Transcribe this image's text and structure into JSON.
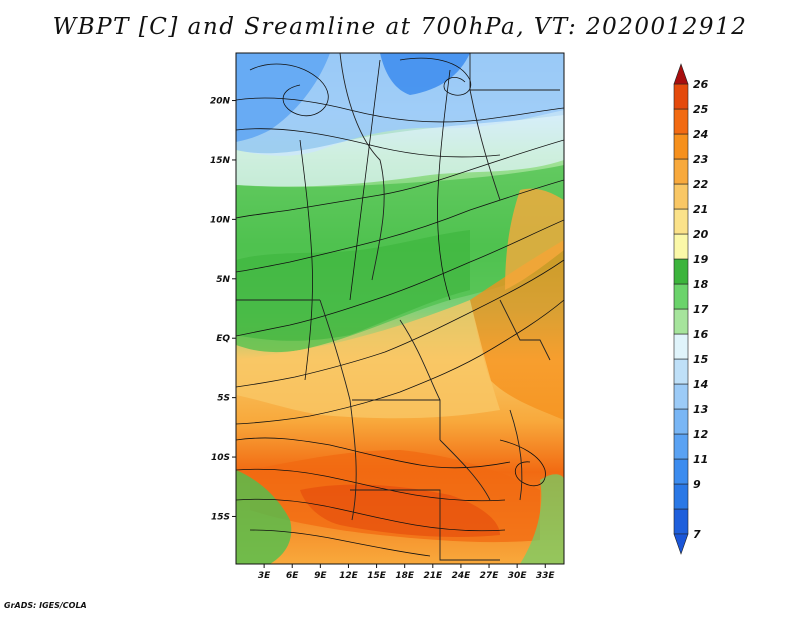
{
  "title": "WBPT [C] and Sreamline at 700hPa, VT: 2020012912",
  "credit": "GrADS: IGES/COLA",
  "map": {
    "lat_range": [
      -19,
      24
    ],
    "lon_range": [
      0,
      35
    ],
    "lat_ticks": [
      {
        "value": 20,
        "label": "20N"
      },
      {
        "value": 15,
        "label": "15N"
      },
      {
        "value": 10,
        "label": "10N"
      },
      {
        "value": 5,
        "label": "5N"
      },
      {
        "value": 0,
        "label": "EQ"
      },
      {
        "value": -5,
        "label": "5S"
      },
      {
        "value": -10,
        "label": "10S"
      },
      {
        "value": -15,
        "label": "15S"
      }
    ],
    "lon_ticks": [
      {
        "value": 3,
        "label": "3E"
      },
      {
        "value": 6,
        "label": "6E"
      },
      {
        "value": 9,
        "label": "9E"
      },
      {
        "value": 12,
        "label": "12E"
      },
      {
        "value": 15,
        "label": "15E"
      },
      {
        "value": 18,
        "label": "18E"
      },
      {
        "value": 21,
        "label": "21E"
      },
      {
        "value": 24,
        "label": "24E"
      },
      {
        "value": 27,
        "label": "27E"
      },
      {
        "value": 30,
        "label": "30E"
      },
      {
        "value": 33,
        "label": "33E"
      }
    ]
  },
  "colorbar": {
    "levels": [
      {
        "label": "7",
        "color": "#1e5fdc"
      },
      {
        "label": "9",
        "color": "#2a78e6"
      },
      {
        "label": "11",
        "color": "#3c8cef"
      },
      {
        "label": "12",
        "color": "#5aa2f3"
      },
      {
        "label": "13",
        "color": "#79b6f5"
      },
      {
        "label": "14",
        "color": "#9ccbf7"
      },
      {
        "label": "15",
        "color": "#bfe0f8"
      },
      {
        "label": "16",
        "color": "#e0f4fb"
      },
      {
        "label": "17",
        "color": "#a6e49c"
      },
      {
        "label": "18",
        "color": "#6bd36b"
      },
      {
        "label": "19",
        "color": "#3cb43c"
      },
      {
        "label": "20",
        "color": "#fbf8a8"
      },
      {
        "label": "21",
        "color": "#fbe28a"
      },
      {
        "label": "22",
        "color": "#f9c765"
      },
      {
        "label": "23",
        "color": "#f8a93c"
      },
      {
        "label": "24",
        "color": "#f6901c"
      },
      {
        "label": "25",
        "color": "#f26a12"
      },
      {
        "label": "26",
        "color": "#e44a0c"
      }
    ],
    "top_cap_color": "#a80e0e",
    "bottom_cap_color": "#1a56d8"
  }
}
